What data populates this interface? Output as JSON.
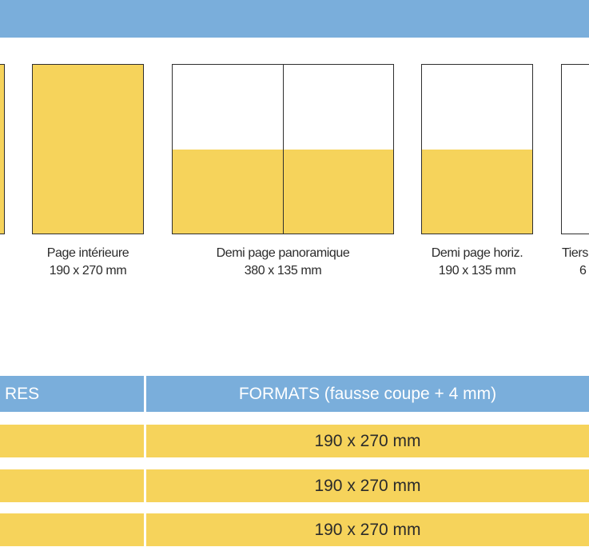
{
  "formats": [
    {
      "name": "Page intérieure",
      "dims": "190 x 270 mm"
    },
    {
      "name": "Demi page panoramique",
      "dims": "380 x 135 mm"
    },
    {
      "name": "Demi page horiz.",
      "dims": "190 x 135 mm"
    },
    {
      "name": "Tiers",
      "dims": "6"
    }
  ],
  "table": {
    "header_left": "RES",
    "header_right": "FORMATS (fausse coupe + 4 mm)",
    "rows": [
      {
        "format": "190 x 270 mm"
      },
      {
        "format": "190 x 270 mm"
      },
      {
        "format": "190 x 270 mm"
      }
    ]
  },
  "colors": {
    "accent_blue": "#7aaedb",
    "fill_yellow": "#f6d35b"
  }
}
